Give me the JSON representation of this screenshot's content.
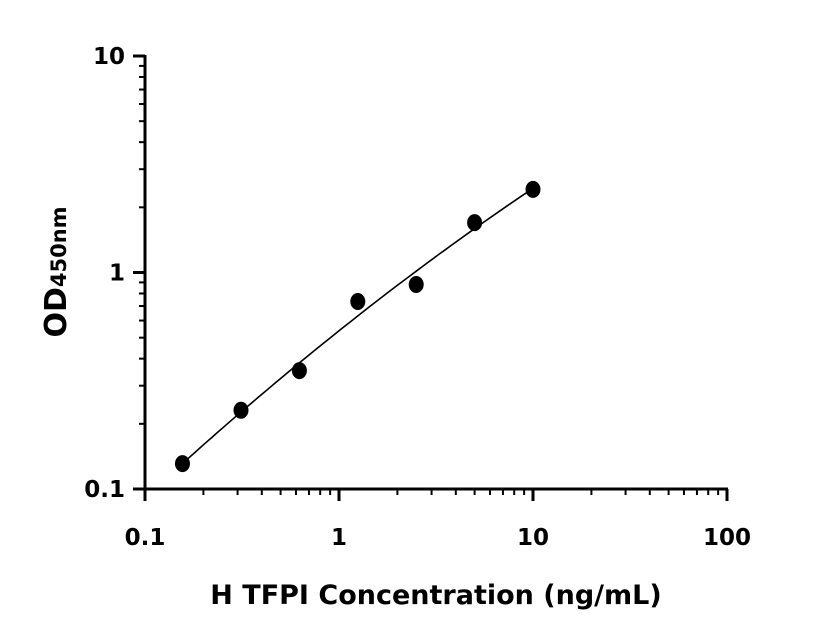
{
  "chart_data": {
    "type": "scatter",
    "title": "",
    "xlabel": "H TFPI Concentration (ng/mL)",
    "ylabel_main": "OD",
    "ylabel_sub": "450nm",
    "x_scale": "log",
    "y_scale": "log",
    "xlim": [
      0.1,
      100
    ],
    "ylim": [
      0.1,
      10
    ],
    "x_ticks": [
      0.1,
      1,
      10,
      100
    ],
    "x_tick_labels": [
      "0.1",
      "1",
      "10",
      "100"
    ],
    "y_ticks": [
      0.1,
      1,
      10
    ],
    "y_tick_labels": [
      "0.1",
      "1",
      "10"
    ],
    "grid": false,
    "series": [
      {
        "x": [
          0.156,
          0.3125,
          0.625,
          1.25,
          2.5,
          5,
          10
        ],
        "y": [
          0.131,
          0.231,
          0.352,
          0.735,
          0.88,
          1.7,
          2.42
        ],
        "marker": "circle",
        "color": "#000000",
        "fit_curve": true
      }
    ]
  }
}
